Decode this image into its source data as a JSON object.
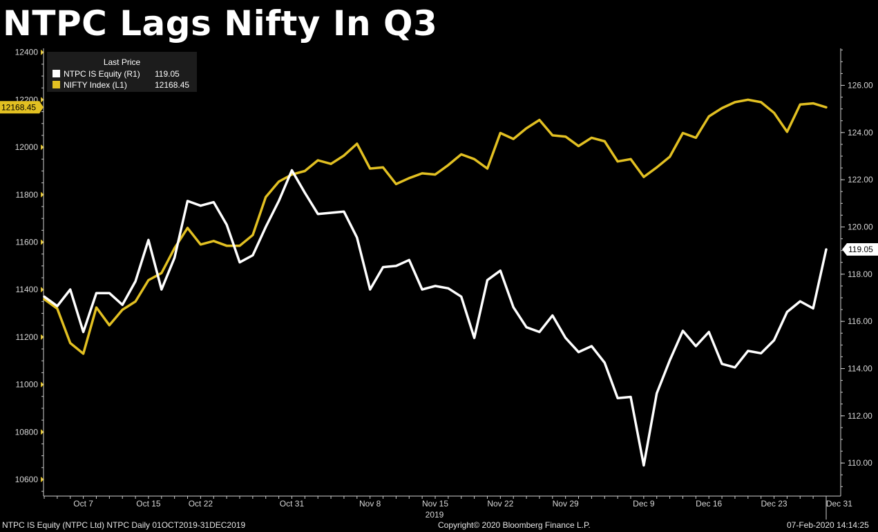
{
  "title": "NTPC Lags Nifty In Q3",
  "footer": {
    "left": "NTPC IS Equity (NTPC Ltd) NTPC  Daily 01OCT2019-31DEC2019",
    "center": "Copyright© 2020 Bloomberg Finance L.P.",
    "right": "07-Feb-2020 14:14:25"
  },
  "legend": {
    "header": "Last Price",
    "items": [
      {
        "name": "NTPC IS Equity  (R1)",
        "value": "119.05",
        "color": "#ffffff"
      },
      {
        "name": "NIFTY Index  (L1)",
        "value": "12168.45",
        "color": "#e2c022"
      }
    ]
  },
  "chart_data": {
    "type": "line",
    "title": "NTPC Lags Nifty In Q3",
    "x_ticks": [
      {
        "label": "Oct 7",
        "index": 3
      },
      {
        "label": "Oct 15",
        "index": 8
      },
      {
        "label": "Oct 22",
        "index": 12
      },
      {
        "label": "Oct 31",
        "index": 19
      },
      {
        "label": "Nov 8",
        "index": 25
      },
      {
        "label": "Nov 15",
        "index": 30
      },
      {
        "label": "Nov 22",
        "index": 35
      },
      {
        "label": "Nov 29",
        "index": 40
      },
      {
        "label": "Dec 9",
        "index": 46
      },
      {
        "label": "Dec 16",
        "index": 51
      },
      {
        "label": "Dec 23",
        "index": 56
      },
      {
        "label": "Dec 31",
        "index": 61
      }
    ],
    "x_sublabel": "2019",
    "left_axis": {
      "min": 10530,
      "max": 12440,
      "ticks": [
        10600,
        10800,
        11000,
        11200,
        11400,
        11600,
        11800,
        12000,
        12200,
        12400
      ]
    },
    "right_axis": {
      "min": 108.6,
      "max": 127.8,
      "ticks": [
        "110.00",
        "112.00",
        "114.00",
        "116.00",
        "118.00",
        "120.00",
        "122.00",
        "124.00",
        "126.00"
      ]
    },
    "series": [
      {
        "name": "NIFTY Index (L1)",
        "axis": "left",
        "color": "#e2c022",
        "last_value_label": "12168.45",
        "values": [
          11360,
          11320,
          11175,
          11130,
          11325,
          11250,
          11315,
          11350,
          11440,
          11470,
          11575,
          11660,
          11590,
          11605,
          11585,
          11585,
          11630,
          11790,
          11855,
          11885,
          11900,
          11945,
          11930,
          11965,
          12015,
          11910,
          11915,
          11845,
          11870,
          11890,
          11885,
          11925,
          11970,
          11950,
          11910,
          12060,
          12035,
          12080,
          12115,
          12050,
          12045,
          12005,
          12040,
          12025,
          11940,
          11950,
          11875,
          11915,
          11960,
          12060,
          12040,
          12130,
          12165,
          12190,
          12200,
          12190,
          12145,
          12065,
          12180,
          12185,
          12168.45
        ]
      },
      {
        "name": "NTPC IS Equity (R1)",
        "axis": "right",
        "color": "#ffffff",
        "last_value_label": "119.05",
        "values": [
          117.05,
          116.65,
          117.35,
          115.55,
          117.2,
          117.2,
          116.7,
          117.7,
          119.45,
          117.35,
          118.7,
          121.1,
          120.9,
          121.05,
          120.1,
          118.5,
          118.8,
          120.0,
          121.1,
          122.4,
          121.45,
          120.55,
          120.6,
          120.65,
          119.55,
          117.35,
          118.3,
          118.35,
          118.6,
          117.35,
          117.5,
          117.4,
          117.05,
          115.3,
          117.75,
          118.15,
          116.6,
          115.75,
          115.55,
          116.25,
          115.3,
          114.7,
          114.95,
          114.25,
          112.75,
          112.8,
          109.9,
          112.95,
          114.35,
          115.6,
          114.95,
          115.55,
          114.2,
          114.05,
          114.75,
          114.65,
          115.2,
          116.4,
          116.85,
          116.55,
          119.05
        ]
      }
    ]
  }
}
